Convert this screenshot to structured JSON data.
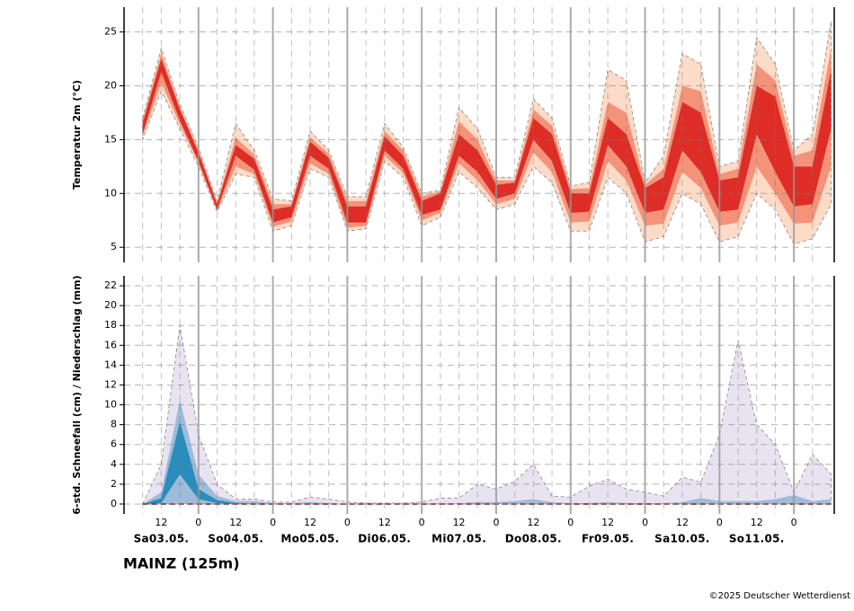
{
  "chart_data": [
    {
      "type": "band",
      "ylabel": "Temperatur 2m (°C)",
      "x": [
        6,
        12,
        18,
        24,
        30,
        36,
        42,
        48,
        54,
        60,
        66,
        72,
        78,
        84,
        90,
        96,
        102,
        108,
        114,
        120,
        126,
        132,
        138,
        144,
        150,
        156,
        162,
        168,
        174,
        180,
        186,
        192,
        198,
        204,
        210,
        216,
        222,
        228
      ],
      "xlim": [
        0,
        229
      ],
      "ylim": [
        3.6,
        27.3
      ],
      "yticks": [
        5,
        10,
        15,
        20,
        25
      ],
      "grid": true,
      "series": [
        {
          "kind": "band",
          "color": "#fddbc7",
          "outline": true,
          "lo": [
            15,
            19.5,
            16,
            12.5,
            8.3,
            11.8,
            11.5,
            6.5,
            7,
            12.3,
            11.5,
            6.5,
            6.7,
            13,
            11.5,
            7,
            7.8,
            12,
            10.5,
            8.5,
            9,
            12.5,
            11,
            6.5,
            6.5,
            11.5,
            10,
            5.5,
            6,
            10,
            9,
            5.5,
            6,
            10,
            8.5,
            5.3,
            5.8,
            9
          ],
          "hi": [
            17,
            23.5,
            18.3,
            14.3,
            9.3,
            16.5,
            14,
            9.5,
            9.3,
            15.8,
            14,
            9.7,
            9.7,
            16.5,
            14.3,
            10,
            10.3,
            18,
            16,
            11.5,
            11.5,
            18.8,
            17,
            10.7,
            11,
            21.5,
            20.5,
            11,
            13.5,
            23,
            22,
            12.5,
            13,
            24.5,
            22,
            14,
            15.5,
            26
          ]
        },
        {
          "kind": "band",
          "color": "#f4937a",
          "outline": false,
          "lo": [
            15.3,
            20.3,
            16.4,
            12.8,
            8.4,
            12.5,
            11.8,
            6.9,
            7.4,
            12.8,
            11.8,
            6.8,
            7,
            13.5,
            11.9,
            7.5,
            8.2,
            12.8,
            11.2,
            9,
            9.5,
            13.8,
            12,
            7.3,
            7.4,
            13,
            11.2,
            7,
            7.2,
            12,
            10.5,
            7,
            7.3,
            12.5,
            10,
            7.2,
            7.3,
            12.5
          ],
          "hi": [
            16.8,
            23,
            18,
            14,
            9.1,
            15.2,
            13.6,
            9,
            9,
            15.2,
            13.7,
            9.3,
            9.3,
            15.8,
            14,
            9.7,
            10.2,
            16.7,
            15,
            11.2,
            11.2,
            17.8,
            16.3,
            10.4,
            10.5,
            18.5,
            17.5,
            10.8,
            12.3,
            20,
            19.5,
            11.8,
            12.3,
            22,
            20.5,
            13.5,
            14,
            23.5
          ]
        },
        {
          "kind": "band",
          "color": "#de2d26",
          "outline": false,
          "lo": [
            15.5,
            21.3,
            16.8,
            13,
            8.5,
            13.5,
            12.2,
            7.3,
            7.8,
            13.5,
            12.3,
            7.3,
            7.3,
            14,
            12.3,
            8,
            8.5,
            13.5,
            12,
            9.5,
            10,
            15,
            13,
            8.2,
            8.3,
            14.5,
            12.5,
            8.2,
            8.5,
            14,
            12,
            8.3,
            8.5,
            15.5,
            12,
            8.8,
            9,
            16
          ],
          "hi": [
            16.5,
            22.5,
            17.8,
            13.8,
            9,
            14.5,
            13.2,
            8.5,
            8.8,
            14.8,
            13.3,
            8.8,
            8.8,
            15.3,
            13.5,
            9.3,
            10,
            15.5,
            14,
            10.8,
            11,
            17,
            15.5,
            10,
            10,
            17,
            15.5,
            10.5,
            11.5,
            18.5,
            17.5,
            11.2,
            11.5,
            20,
            19,
            12.5,
            12.5,
            21.5
          ]
        }
      ]
    },
    {
      "type": "band",
      "ylabel": "6-std. Schneefall (cm) / Niederschlag (mm)",
      "x": [
        6,
        12,
        18,
        24,
        30,
        36,
        42,
        48,
        54,
        60,
        66,
        72,
        78,
        84,
        90,
        96,
        102,
        108,
        114,
        120,
        126,
        132,
        138,
        144,
        150,
        156,
        162,
        168,
        174,
        180,
        186,
        192,
        198,
        204,
        210,
        216,
        222,
        228
      ],
      "xlim": [
        0,
        229
      ],
      "ylim": [
        -1,
        23
      ],
      "yticks": [
        0,
        2,
        4,
        6,
        8,
        10,
        12,
        14,
        16,
        18,
        20,
        22
      ],
      "grid": true,
      "xticks": [
        12,
        {
          "value": 24,
          "label": "0"
        },
        {
          "value": 36,
          "label": "12"
        },
        {
          "value": 48,
          "label": "0"
        },
        {
          "value": 60,
          "label": "12"
        },
        {
          "value": 72,
          "label": "0"
        },
        {
          "value": 84,
          "label": "12"
        },
        {
          "value": 96,
          "label": "0"
        },
        {
          "value": 108,
          "label": "12"
        },
        {
          "value": 120,
          "label": "0"
        },
        {
          "value": 132,
          "label": "12"
        },
        {
          "value": 144,
          "label": "0"
        },
        {
          "value": 156,
          "label": "12"
        },
        {
          "value": 168,
          "label": "0"
        },
        {
          "value": 180,
          "label": "12"
        },
        {
          "value": 192,
          "label": "0"
        },
        {
          "value": 204,
          "label": "12"
        },
        {
          "value": 216,
          "label": "0"
        }
      ],
      "xminor": [
        6,
        18,
        30,
        42,
        54,
        66,
        78,
        90,
        102,
        114,
        126,
        138,
        150,
        162,
        174,
        186,
        198,
        210,
        222
      ],
      "xdaylabels": [
        {
          "value": 12,
          "label": "Sa03.05."
        },
        {
          "value": 36,
          "label": "So04.05."
        },
        {
          "value": 60,
          "label": "Mo05.05."
        },
        {
          "value": 84,
          "label": "Di06.05."
        },
        {
          "value": 108,
          "label": "Mi07.05."
        },
        {
          "value": 132,
          "label": "Do08.05."
        },
        {
          "value": 156,
          "label": "Fr09.05."
        },
        {
          "value": 180,
          "label": "Sa10.05."
        },
        {
          "value": 204,
          "label": "So11.05."
        }
      ],
      "series": [
        {
          "kind": "area",
          "color": "#e9e3f1",
          "outline": true,
          "values": [
            0,
            4,
            18,
            7,
            2,
            0.5,
            0.5,
            0.2,
            0.2,
            0.7,
            0.5,
            0.2,
            0.1,
            0.1,
            0.1,
            0.2,
            0.6,
            0.6,
            2,
            1.5,
            2.3,
            4,
            0.8,
            0.7,
            1.8,
            2.5,
            1.5,
            1.2,
            0.8,
            2.7,
            2.2,
            7,
            16.5,
            8,
            6,
            1.2,
            5,
            3
          ]
        },
        {
          "kind": "area",
          "color": "#9ebcda",
          "outline": false,
          "values": [
            0,
            1.2,
            10.5,
            3,
            0.8,
            0.3,
            0.3,
            0.1,
            0.1,
            0.2,
            0.1,
            0,
            0,
            0,
            0,
            0,
            0.1,
            0.1,
            0.2,
            0.2,
            0.3,
            0.5,
            0.2,
            0.1,
            0.1,
            0.2,
            0.1,
            0.1,
            0.1,
            0.2,
            0.6,
            0.3,
            0.3,
            0.3,
            0.5,
            0.9,
            0.3,
            0.5
          ]
        },
        {
          "kind": "band",
          "color": "#2b8cbe",
          "outline": false,
          "lo": [
            0,
            0.1,
            3,
            0.5,
            0.1,
            0,
            0,
            0,
            0,
            0,
            0,
            0,
            0,
            0,
            0,
            0,
            0,
            0,
            0,
            0,
            0,
            0,
            0,
            0,
            0,
            0,
            0,
            0,
            0,
            0,
            0,
            0,
            0,
            0,
            0,
            0,
            0,
            0
          ],
          "hi": [
            0,
            0.6,
            8.3,
            1.5,
            0.4,
            0.1,
            0,
            0,
            0,
            0,
            0,
            0,
            0,
            0,
            0,
            0,
            0,
            0,
            0,
            0,
            0,
            0,
            0,
            0,
            0,
            0,
            0,
            0,
            0,
            0,
            0,
            0,
            0,
            0,
            0,
            0,
            0,
            0
          ]
        },
        {
          "kind": "line",
          "color": "#8b1a1a",
          "dashed": true,
          "values": [
            0,
            0,
            0,
            0,
            0,
            0,
            0,
            0,
            0,
            0,
            0,
            0,
            0,
            0,
            0,
            0,
            0,
            0,
            0,
            0,
            0,
            0,
            0,
            0,
            0,
            0,
            0,
            0,
            0,
            0,
            0,
            0,
            0,
            0,
            0,
            0,
            0,
            0
          ]
        }
      ]
    }
  ],
  "footer": {
    "station": "MAINZ (125m)",
    "credit": "©2025 Deutscher Wetterdienst"
  }
}
